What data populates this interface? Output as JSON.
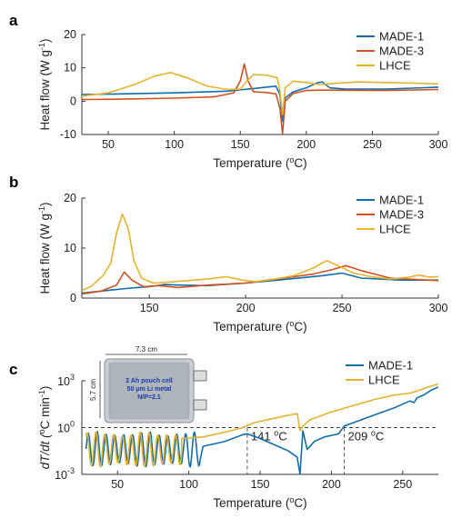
{
  "colors": {
    "MADE-1": "#0f6db0",
    "MADE-3": "#d2521f",
    "LHCE": "#e6b32f"
  },
  "chart_data": [
    {
      "panel_label": "a",
      "type": "line",
      "xlabel_main": "Temperature (",
      "xlabel_sup": "o",
      "xlabel_tail": "C)",
      "ylabel_main": "Heat flow (W g",
      "ylabel_sup": "-1",
      "ylabel_tail": ")",
      "xlim": [
        30,
        300
      ],
      "ylim": [
        -10,
        20
      ],
      "xticks": [
        50,
        100,
        150,
        200,
        250,
        300
      ],
      "yticks": [
        -10,
        0,
        10,
        20
      ],
      "legend_position": "top-right",
      "series": [
        {
          "name": "MADE-1",
          "color": "#0f6db0",
          "points": [
            [
              30,
              2
            ],
            [
              60,
              2.2
            ],
            [
              100,
              2.5
            ],
            [
              140,
              3
            ],
            [
              160,
              3.8
            ],
            [
              172,
              4.3
            ],
            [
              177,
              4.5
            ],
            [
              180,
              2
            ],
            [
              182,
              -6
            ],
            [
              184,
              1
            ],
            [
              190,
              2.8
            ],
            [
              200,
              4
            ],
            [
              208,
              5.5
            ],
            [
              212,
              5.8
            ],
            [
              218,
              4
            ],
            [
              230,
              3.6
            ],
            [
              260,
              3.6
            ],
            [
              280,
              3.9
            ],
            [
              300,
              4.2
            ]
          ]
        },
        {
          "name": "MADE-3",
          "color": "#d2521f",
          "points": [
            [
              30,
              0.5
            ],
            [
              60,
              0.6
            ],
            [
              100,
              0.9
            ],
            [
              130,
              1.3
            ],
            [
              145,
              2.5
            ],
            [
              150,
              6
            ],
            [
              153,
              11.2
            ],
            [
              156,
              6
            ],
            [
              160,
              2.8
            ],
            [
              170,
              2.6
            ],
            [
              177,
              2.2
            ],
            [
              180,
              -2
            ],
            [
              182,
              -9.8
            ],
            [
              184,
              0
            ],
            [
              190,
              2.3
            ],
            [
              200,
              3.2
            ],
            [
              210,
              3.3
            ],
            [
              220,
              3.3
            ],
            [
              260,
              3.2
            ],
            [
              300,
              3.5
            ]
          ]
        },
        {
          "name": "LHCE",
          "color": "#e6b32f",
          "points": [
            [
              30,
              1.5
            ],
            [
              50,
              2.5
            ],
            [
              70,
              5
            ],
            [
              85,
              7.5
            ],
            [
              97,
              8.6
            ],
            [
              110,
              7
            ],
            [
              125,
              4.5
            ],
            [
              140,
              3.5
            ],
            [
              150,
              3.6
            ],
            [
              155,
              6
            ],
            [
              160,
              8
            ],
            [
              170,
              7.8
            ],
            [
              178,
              7
            ],
            [
              180,
              3
            ],
            [
              182,
              -4
            ],
            [
              184,
              4
            ],
            [
              190,
              6
            ],
            [
              200,
              5.6
            ],
            [
              210,
              5
            ],
            [
              220,
              5.3
            ],
            [
              240,
              5.8
            ],
            [
              260,
              5.6
            ],
            [
              280,
              5.4
            ],
            [
              300,
              5.2
            ]
          ]
        }
      ]
    },
    {
      "panel_label": "b",
      "type": "line",
      "xlabel_main": "Temperature (",
      "xlabel_sup": "o",
      "xlabel_tail": "C)",
      "ylabel_main": "Heat flow (W g",
      "ylabel_sup": "-1",
      "ylabel_tail": ")",
      "xlim": [
        115,
        300
      ],
      "ylim": [
        0,
        20
      ],
      "xticks": [
        150,
        200,
        250,
        300
      ],
      "yticks": [
        0,
        10,
        20
      ],
      "legend_position": "top-right",
      "series": [
        {
          "name": "MADE-1",
          "color": "#0f6db0",
          "points": [
            [
              115,
              1
            ],
            [
              130,
              1.6
            ],
            [
              140,
              2
            ],
            [
              150,
              2.3
            ],
            [
              158,
              2.7
            ],
            [
              165,
              2.6
            ],
            [
              180,
              2.5
            ],
            [
              200,
              3
            ],
            [
              220,
              3.7
            ],
            [
              240,
              4.5
            ],
            [
              250,
              5
            ],
            [
              260,
              4
            ],
            [
              280,
              3.6
            ],
            [
              300,
              3.6
            ]
          ]
        },
        {
          "name": "MADE-3",
          "color": "#d2521f",
          "points": [
            [
              115,
              0.8
            ],
            [
              125,
              1.4
            ],
            [
              133,
              2.6
            ],
            [
              137,
              5.2
            ],
            [
              141,
              3.6
            ],
            [
              147,
              2.3
            ],
            [
              155,
              2.5
            ],
            [
              165,
              2.1
            ],
            [
              180,
              2.6
            ],
            [
              200,
              3
            ],
            [
              220,
              4
            ],
            [
              235,
              4.8
            ],
            [
              245,
              5.7
            ],
            [
              252,
              6.5
            ],
            [
              260,
              5.5
            ],
            [
              275,
              4
            ],
            [
              300,
              3.5
            ]
          ]
        },
        {
          "name": "LHCE",
          "color": "#e6b32f",
          "points": [
            [
              115,
              1.5
            ],
            [
              120,
              2.4
            ],
            [
              126,
              4.5
            ],
            [
              130,
              7
            ],
            [
              133,
              13
            ],
            [
              136,
              16.8
            ],
            [
              139,
              14
            ],
            [
              142,
              7.5
            ],
            [
              146,
              4
            ],
            [
              152,
              3
            ],
            [
              160,
              3.2
            ],
            [
              170,
              3.5
            ],
            [
              180,
              3.8
            ],
            [
              190,
              4.3
            ],
            [
              198,
              3.6
            ],
            [
              205,
              3.3
            ],
            [
              215,
              3.8
            ],
            [
              225,
              4.5
            ],
            [
              235,
              6
            ],
            [
              242,
              7.5
            ],
            [
              248,
              6.5
            ],
            [
              256,
              5
            ],
            [
              265,
              4.3
            ],
            [
              275,
              3.8
            ],
            [
              285,
              4.2
            ],
            [
              290,
              4.6
            ],
            [
              295,
              4.2
            ],
            [
              300,
              4.3
            ]
          ]
        }
      ]
    },
    {
      "panel_label": "c",
      "type": "line",
      "xlabel_main": "Temperature (",
      "xlabel_sup": "o",
      "xlabel_tail": "C)",
      "ylabel_main": "dT/dt (",
      "ylabel_sup_o": "o",
      "ylabel_tail": "C min",
      "ylabel_sup": "-1",
      "ylabel_close": ")",
      "log_scale_y": true,
      "xlim": [
        25,
        275
      ],
      "ylim_exponent": [
        -3,
        3
      ],
      "xticks": [
        50,
        100,
        150,
        200,
        250
      ],
      "yticks_exponent": [
        -3,
        0,
        3
      ],
      "ytick_labels": {
        "base": "10",
        "sup_minus3": "-3",
        "sup_0": "0",
        "sup_3": "3"
      },
      "legend_position": "top-right",
      "reference_line_y_exponent": 0,
      "annotations": [
        {
          "x": 141,
          "text": "141 ",
          "sup": "o",
          "tail": "C"
        },
        {
          "x": 209,
          "text": "209 ",
          "sup": "o",
          "tail": "C"
        }
      ],
      "inset": {
        "width_label": "7.3 cm",
        "height_label": "5.7 cm",
        "lines": [
          "2 Ah pouch cell",
          "50 μm Li metal",
          "N/P=2.1"
        ]
      },
      "series": [
        {
          "name": "MADE-1",
          "color": "#0f6db0",
          "oscillation_range": [
            28,
            108
          ],
          "points": [
            [
              110,
              -1.2
            ],
            [
              125,
              -0.9
            ],
            [
              138,
              -0.45
            ],
            [
              141,
              -0.4
            ],
            [
              150,
              -0.7
            ],
            [
              160,
              -1.1
            ],
            [
              170,
              -1.5
            ],
            [
              176,
              -1.9
            ],
            [
              178,
              -3
            ],
            [
              180,
              -0.2
            ],
            [
              183,
              -1.4
            ],
            [
              188,
              -0.9
            ],
            [
              195,
              -0.6
            ],
            [
              205,
              -0.4
            ],
            [
              209,
              0.1
            ],
            [
              215,
              0.3
            ],
            [
              230,
              0.8
            ],
            [
              245,
              1.3
            ],
            [
              255,
              1.7
            ],
            [
              258,
              1.6
            ],
            [
              260,
              1.9
            ],
            [
              265,
              2.1
            ],
            [
              270,
              2.4
            ],
            [
              275,
              2.6
            ]
          ]
        },
        {
          "name": "LHCE",
          "color": "#e6b32f",
          "oscillation_range": [
            28,
            95
          ],
          "points": [
            [
              95,
              -0.7
            ],
            [
              110,
              -0.6
            ],
            [
              125,
              -0.3
            ],
            [
              138,
              0
            ],
            [
              145,
              0.3
            ],
            [
              160,
              0.6
            ],
            [
              170,
              0.8
            ],
            [
              176,
              0.9
            ],
            [
              178,
              -0.2
            ],
            [
              180,
              0.1
            ],
            [
              185,
              0.5
            ],
            [
              200,
              1
            ],
            [
              215,
              1.4
            ],
            [
              230,
              1.8
            ],
            [
              245,
              2.1
            ],
            [
              255,
              2.2
            ],
            [
              262,
              2.4
            ],
            [
              268,
              2.6
            ],
            [
              275,
              2.8
            ]
          ]
        }
      ]
    }
  ]
}
